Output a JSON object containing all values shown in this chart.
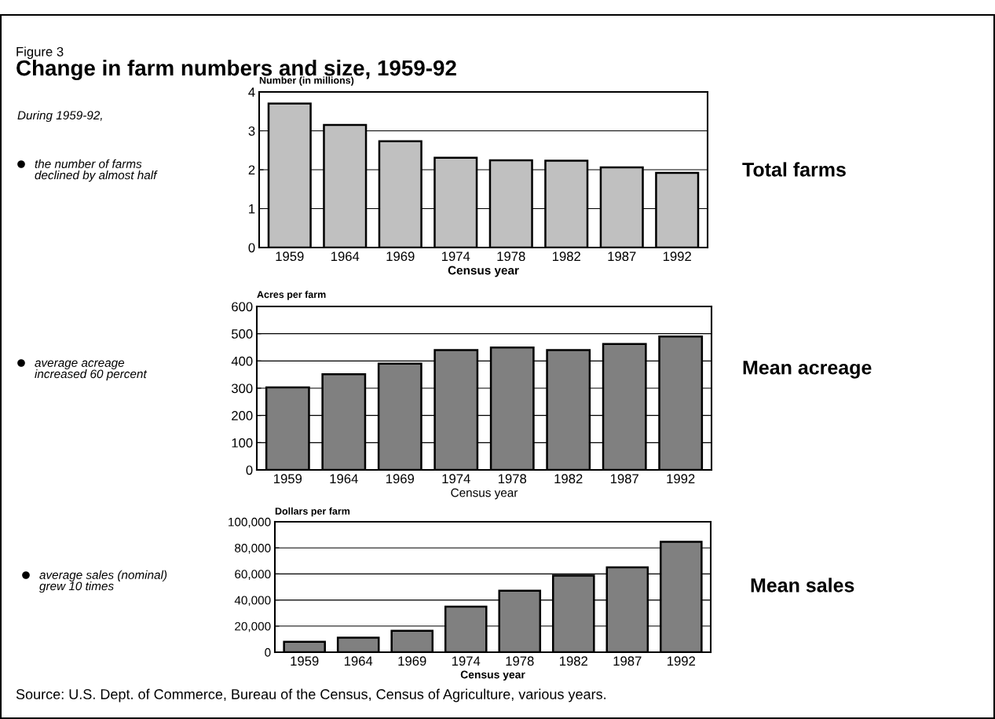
{
  "chart_data": [
    {
      "type": "bar",
      "title": "Change in farm numbers and size, 1959-92",
      "ylabel": "Number (in millions)",
      "xlabel": "Census year",
      "categories": [
        "1959",
        "1964",
        "1969",
        "1974",
        "1978",
        "1982",
        "1987",
        "1992"
      ],
      "values": [
        3.7,
        3.15,
        2.73,
        2.31,
        2.24,
        2.23,
        2.06,
        1.92
      ],
      "color": "#c0c0c0",
      "ylim": [
        0,
        4
      ],
      "yticks": [
        0,
        1,
        2,
        3,
        4
      ],
      "grid": "y",
      "annotations": [
        "Figure 3",
        "During 1959-92,",
        "the number of farms\ndeclined by almost half",
        "Total farms"
      ]
    },
    {
      "type": "bar",
      "ylabel": "Acres per farm",
      "xlabel": "Census year",
      "categories": [
        "1959",
        "1964",
        "1969",
        "1974",
        "1978",
        "1982",
        "1987",
        "1992"
      ],
      "values": [
        303,
        351,
        390,
        440,
        449,
        440,
        462,
        490
      ],
      "color": "#808080",
      "ylim": [
        0,
        600
      ],
      "yticks": [
        0,
        100,
        200,
        300,
        400,
        500,
        600
      ],
      "grid": "y",
      "annotations": [
        "average acreage\nincreased 60 percent",
        "Mean acreage"
      ]
    },
    {
      "type": "bar",
      "ylabel": "Dollars per farm",
      "xlabel": "Census year",
      "categories": [
        "1959",
        "1964",
        "1969",
        "1974",
        "1978",
        "1982",
        "1987",
        "1992"
      ],
      "values": [
        8000,
        11100,
        16400,
        34900,
        47200,
        58800,
        65100,
        84600
      ],
      "color": "#808080",
      "ylim": [
        0,
        100000
      ],
      "yticks": [
        {
          "value": 0,
          "label": "0"
        },
        {
          "value": 20000,
          "label": "20,000"
        },
        {
          "value": 40000,
          "label": "40,000"
        },
        {
          "value": 60000,
          "label": "60,000"
        },
        {
          "value": 80000,
          "label": "80,000"
        },
        {
          "value": 100000,
          "label": "100,000"
        }
      ],
      "grid": "y",
      "annotations": [
        "average sales (nominal)\ngrew 10 times",
        "Mean sales",
        "Source: U.S. Dept. of Commerce, Bureau of the Census, Census of Agriculture, various years."
      ]
    }
  ]
}
